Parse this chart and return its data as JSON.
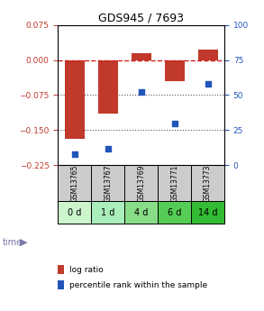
{
  "title": "GDS945 / 7693",
  "samples": [
    "GSM13765",
    "GSM13767",
    "GSM13769",
    "GSM13771",
    "GSM13773"
  ],
  "time_labels": [
    "0 d",
    "1 d",
    "4 d",
    "6 d",
    "14 d"
  ],
  "log_ratios": [
    -0.168,
    -0.115,
    0.015,
    -0.045,
    0.022
  ],
  "percentile_ranks": [
    8,
    12,
    52,
    30,
    58
  ],
  "ylim_left": [
    -0.225,
    0.075
  ],
  "ylim_right": [
    0,
    100
  ],
  "yticks_left": [
    0.075,
    0,
    -0.075,
    -0.15,
    -0.225
  ],
  "yticks_right": [
    100,
    75,
    50,
    25,
    0
  ],
  "bar_color": "#c0392b",
  "dot_color": "#2255bb",
  "zero_line_color": "#cc2222",
  "dot_line_color": "#555555",
  "gsm_bg_color": "#cccccc",
  "time_bg_colors": [
    "#ccf5cc",
    "#aaeebb",
    "#88dd88",
    "#55cc55",
    "#33bb33"
  ],
  "time_arrow_color": "#7777aa",
  "legend_bar_color": "#c0392b",
  "legend_dot_color": "#2255bb"
}
